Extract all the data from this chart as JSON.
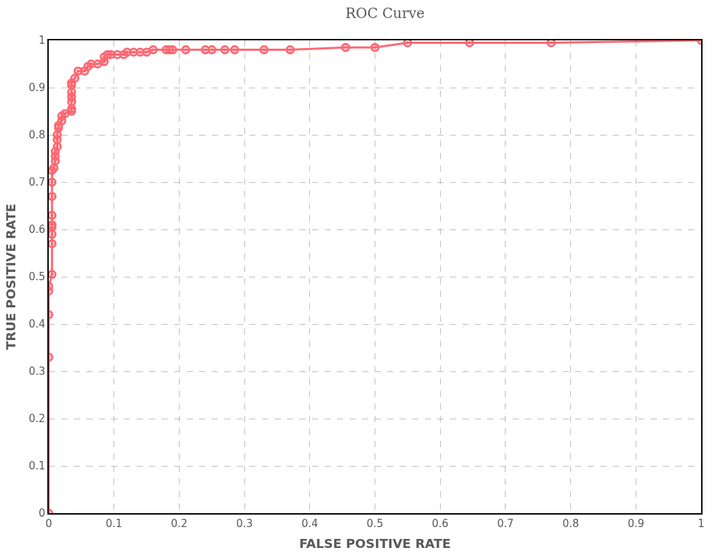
{
  "chart_data": {
    "type": "line",
    "title": "ROC Curve",
    "xlabel": "FALSE POSITIVE RATE",
    "ylabel": "TRUE POSITIVE RATE",
    "xlim": [
      0,
      1
    ],
    "ylim": [
      0,
      1
    ],
    "xticks": [
      0,
      0.1,
      0.2,
      0.3,
      0.4,
      0.5,
      0.6,
      0.7,
      0.8,
      0.9,
      1
    ],
    "yticks": [
      0,
      0.1,
      0.2,
      0.3,
      0.4,
      0.5,
      0.6,
      0.7,
      0.8,
      0.9,
      1
    ],
    "grid": true,
    "marker": "circle",
    "line_style": "solid",
    "series": [
      {
        "color": "#ff4d5a",
        "x": [
          0,
          0,
          0,
          0,
          0,
          0.005,
          0.005,
          0.005,
          0.005,
          0.005,
          0.005,
          0.005,
          0.005,
          0.005,
          0.008,
          0.01,
          0.01,
          0.01,
          0.013,
          0.013,
          0.013,
          0.015,
          0.015,
          0.02,
          0.02,
          0.025,
          0.035,
          0.035,
          0.035,
          0.035,
          0.035,
          0.035,
          0.035,
          0.04,
          0.045,
          0.055,
          0.06,
          0.065,
          0.075,
          0.085,
          0.085,
          0.09,
          0.095,
          0.105,
          0.115,
          0.12,
          0.13,
          0.14,
          0.15,
          0.16,
          0.18,
          0.185,
          0.19,
          0.21,
          0.24,
          0.25,
          0.27,
          0.285,
          0.33,
          0.37,
          0.455,
          0.5,
          0.55,
          0.645,
          0.77,
          1
        ],
        "values": [
          0,
          0.33,
          0.42,
          0.47,
          0.48,
          0.505,
          0.57,
          0.59,
          0.605,
          0.61,
          0.63,
          0.67,
          0.7,
          0.725,
          0.73,
          0.745,
          0.755,
          0.765,
          0.775,
          0.79,
          0.8,
          0.815,
          0.82,
          0.83,
          0.84,
          0.845,
          0.85,
          0.855,
          0.87,
          0.88,
          0.89,
          0.905,
          0.91,
          0.92,
          0.935,
          0.935,
          0.945,
          0.95,
          0.95,
          0.955,
          0.965,
          0.97,
          0.97,
          0.97,
          0.97,
          0.975,
          0.975,
          0.975,
          0.975,
          0.98,
          0.98,
          0.98,
          0.98,
          0.98,
          0.98,
          0.98,
          0.98,
          0.98,
          0.98,
          0.98,
          0.985,
          0.985,
          0.995,
          0.995,
          0.995,
          1
        ]
      }
    ]
  }
}
